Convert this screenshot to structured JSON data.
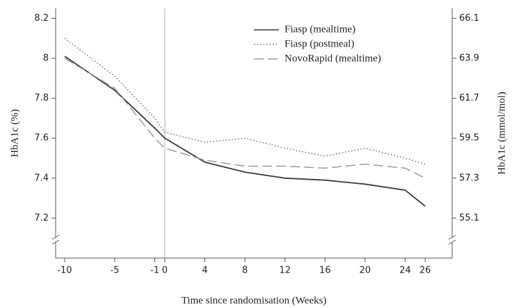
{
  "chart_data": {
    "type": "line",
    "ylabel": "HbA1c (%)",
    "y2label": "HbA1c (mmol/mol)",
    "xlabel": "Time since randomisation (Weeks)",
    "x": [
      -10,
      -5,
      -1,
      0,
      4,
      8,
      12,
      16,
      20,
      24,
      26
    ],
    "series": [
      {
        "name": "Fiasp (mealtime)",
        "color": "#3a3a3a",
        "dash": "solid",
        "values": [
          8.01,
          7.84,
          7.65,
          7.6,
          7.48,
          7.43,
          7.4,
          7.39,
          7.37,
          7.34,
          7.26
        ]
      },
      {
        "name": "Fiasp (postmeal)",
        "color": "#707070",
        "dash": "dotted",
        "values": [
          8.1,
          7.91,
          7.7,
          7.63,
          7.58,
          7.6,
          7.55,
          7.51,
          7.55,
          7.5,
          7.47
        ]
      },
      {
        "name": "NovoRapid (mealtime)",
        "color": "#9a9a9a",
        "dash": "dashed",
        "values": [
          8.0,
          7.85,
          7.6,
          7.55,
          7.49,
          7.46,
          7.46,
          7.45,
          7.47,
          7.45,
          7.4
        ]
      }
    ],
    "xlim": [
      -10.9,
      28.7
    ],
    "xticks": [
      -10,
      -5,
      -1,
      0,
      4,
      8,
      12,
      16,
      20,
      24,
      26
    ],
    "ylim": [
      7.0,
      8.25
    ],
    "yticks": [
      7.2,
      7.4,
      7.6,
      7.8,
      8.0,
      8.2
    ],
    "y2lim": [
      52.9,
      66.65
    ],
    "y2ticks": [
      55.1,
      57.3,
      59.5,
      61.7,
      63.9,
      66.1
    ],
    "vlines": [
      0
    ],
    "legend": "upper-right",
    "axis_break": true
  }
}
